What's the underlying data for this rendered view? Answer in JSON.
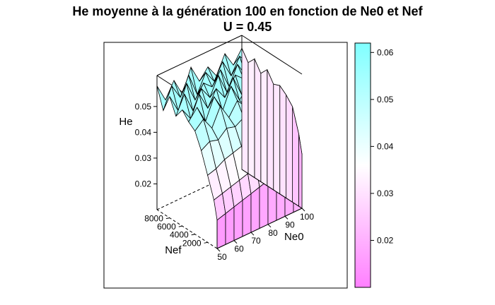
{
  "chart_data": {
    "type": "surface3d",
    "title": "He moyenne à la génération 100 en fonction de Ne0 et Nef",
    "subtitle": "U = 0.45",
    "xlabel": "Ne0",
    "ylabel": "Nef",
    "zlabel": "He",
    "x_ticks": [
      "50",
      "60",
      "70",
      "80",
      "90",
      "100"
    ],
    "y_ticks": [
      "2000",
      "4000",
      "6000",
      "8000"
    ],
    "z_ticks": [
      "0.02",
      "0.03",
      "0.04",
      "0.05"
    ],
    "xlim": [
      50,
      100
    ],
    "ylim": [
      500,
      10000
    ],
    "zlim": [
      0.01,
      0.062
    ],
    "x": [
      50,
      55,
      60,
      65,
      70,
      75,
      80,
      85,
      90,
      95,
      100
    ],
    "y": [
      500,
      1000,
      2000,
      3000,
      4000,
      5000,
      6000,
      7000,
      8000,
      9000,
      10000
    ],
    "z_grid": [
      [
        0.021,
        0.022,
        0.023,
        0.024,
        0.025,
        0.026,
        0.027,
        0.028,
        0.029,
        0.03,
        0.031
      ],
      [
        0.028,
        0.029,
        0.03,
        0.031,
        0.032,
        0.033,
        0.034,
        0.035,
        0.036,
        0.037,
        0.038
      ],
      [
        0.036,
        0.037,
        0.039,
        0.04,
        0.041,
        0.042,
        0.043,
        0.044,
        0.045,
        0.046,
        0.047
      ],
      [
        0.044,
        0.046,
        0.045,
        0.048,
        0.047,
        0.049,
        0.048,
        0.05,
        0.049,
        0.051,
        0.05
      ],
      [
        0.05,
        0.053,
        0.048,
        0.055,
        0.049,
        0.054,
        0.05,
        0.056,
        0.051,
        0.053,
        0.052
      ],
      [
        0.052,
        0.056,
        0.049,
        0.057,
        0.05,
        0.058,
        0.051,
        0.055,
        0.052,
        0.057,
        0.051
      ],
      [
        0.055,
        0.05,
        0.058,
        0.051,
        0.057,
        0.052,
        0.058,
        0.05,
        0.056,
        0.052,
        0.055
      ],
      [
        0.051,
        0.058,
        0.05,
        0.057,
        0.052,
        0.059,
        0.051,
        0.056,
        0.053,
        0.058,
        0.052
      ],
      [
        0.057,
        0.05,
        0.059,
        0.051,
        0.056,
        0.053,
        0.058,
        0.05,
        0.057,
        0.051,
        0.056
      ],
      [
        0.05,
        0.058,
        0.052,
        0.059,
        0.05,
        0.057,
        0.052,
        0.058,
        0.051,
        0.057,
        0.053
      ],
      [
        0.058,
        0.051,
        0.057,
        0.05,
        0.059,
        0.052,
        0.056,
        0.051,
        0.058,
        0.052,
        0.057
      ]
    ],
    "colorbar": {
      "range": [
        0.01,
        0.062
      ],
      "ticks": [
        "0.02",
        "0.03",
        "0.04",
        "0.05",
        "0.06"
      ],
      "colors": [
        "#ff80ff",
        "#ffffff",
        "#80ffff"
      ]
    },
    "grid": false,
    "legend": "right"
  }
}
